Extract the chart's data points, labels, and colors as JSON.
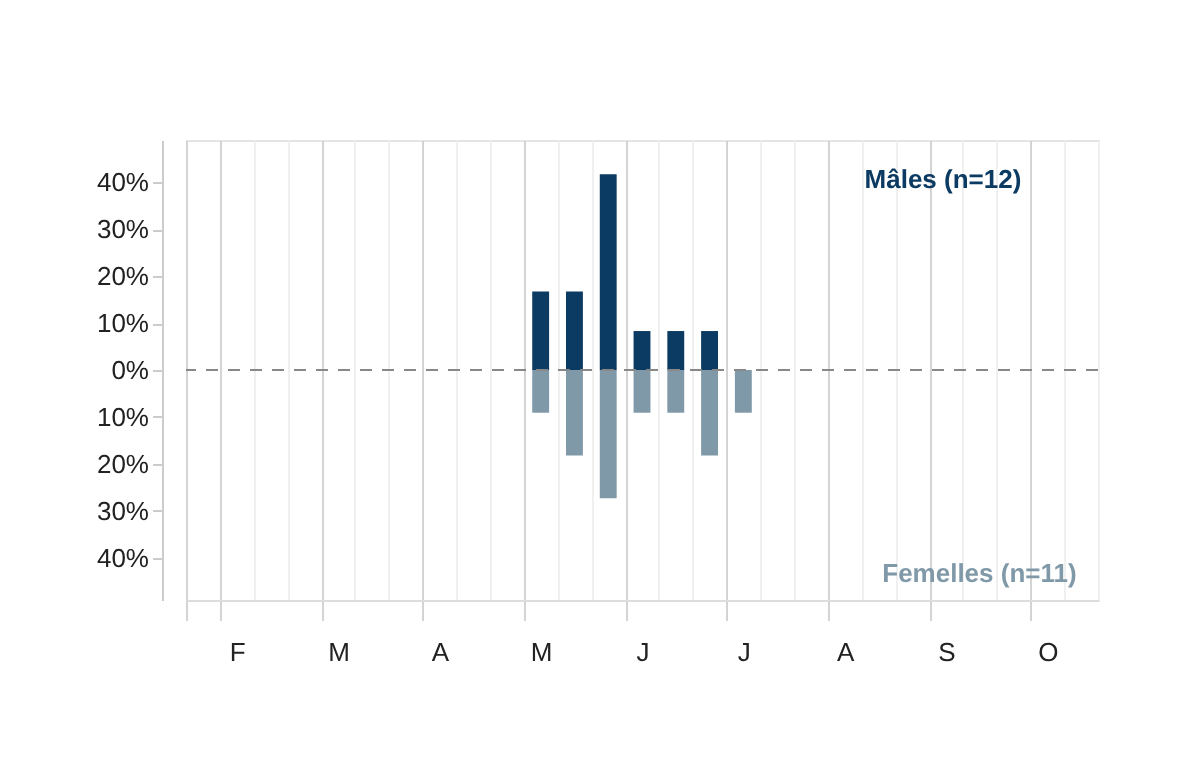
{
  "chart_data": {
    "type": "bar",
    "categories": [
      null,
      "F",
      null,
      null,
      "M",
      null,
      null,
      "A",
      null,
      null,
      "M",
      null,
      null,
      "J",
      null,
      null,
      "J",
      null,
      null,
      "A",
      null,
      null,
      "S",
      null,
      null,
      "O",
      null
    ],
    "series": [
      {
        "name": "Mâles (n=12)",
        "color": "#0b3a63",
        "values": [
          null,
          null,
          null,
          null,
          null,
          null,
          null,
          null,
          null,
          null,
          16.7,
          16.7,
          41.7,
          8.3,
          8.3,
          8.3,
          null,
          null,
          null,
          null,
          null,
          null,
          null,
          null,
          null,
          null,
          null
        ]
      },
      {
        "name": "Femelles (n=11)",
        "color": "#8099a8",
        "values": [
          null,
          null,
          null,
          null,
          null,
          null,
          null,
          null,
          null,
          null,
          -9.1,
          -18.2,
          -27.3,
          -9.1,
          -9.1,
          -18.2,
          -9.1,
          null,
          null,
          null,
          null,
          null,
          null,
          null,
          null,
          null,
          null
        ]
      }
    ],
    "ylim": [
      -49,
      49
    ],
    "yticks": [
      {
        "value": -40,
        "label": "40%"
      },
      {
        "value": -30,
        "label": "30%"
      },
      {
        "value": -20,
        "label": "20%"
      },
      {
        "value": -10,
        "label": "10%"
      },
      {
        "value": 0,
        "label": "0%"
      },
      {
        "value": 10,
        "label": "10%"
      },
      {
        "value": 20,
        "label": "20%"
      },
      {
        "value": 30,
        "label": "30%"
      },
      {
        "value": 40,
        "label": "40%"
      }
    ],
    "ref_lines": [
      {
        "axis": "y",
        "value": 0,
        "color": "#888888",
        "line_style": "dashed"
      }
    ],
    "grid": "x",
    "legend": false
  }
}
